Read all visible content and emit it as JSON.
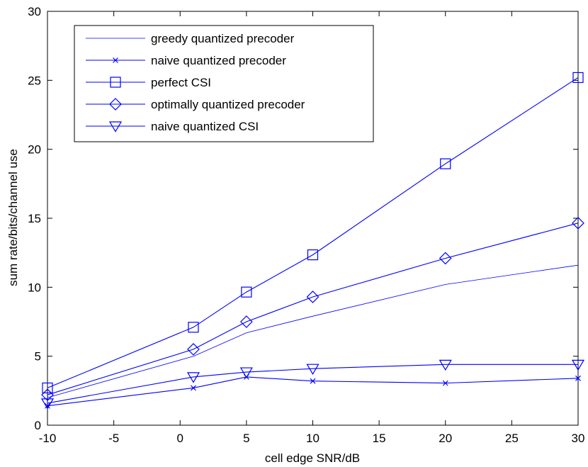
{
  "chart_data": {
    "type": "line",
    "title": "",
    "xlabel": "cell edge SNR/dB",
    "ylabel": "sum rate/bits/channel use",
    "xlim": [
      -10,
      30
    ],
    "ylim": [
      0,
      30
    ],
    "xticks": [
      "-10",
      "-5",
      "0",
      "5",
      "10",
      "15",
      "20",
      "25",
      "30"
    ],
    "yticks": [
      "0",
      "5",
      "10",
      "15",
      "20",
      "25",
      "30"
    ],
    "grid": false,
    "legend_position": "top-left",
    "line_color": "#0000ff",
    "x": [
      -10,
      1,
      5,
      10,
      20,
      30
    ],
    "series": [
      {
        "name": "greedy quantized precoder",
        "marker": "none",
        "values": [
          2.0,
          5.0,
          6.7,
          7.9,
          10.2,
          11.6
        ]
      },
      {
        "name": "naive quantized precoder",
        "marker": "x",
        "values": [
          1.4,
          2.7,
          3.5,
          3.2,
          3.05,
          3.4
        ]
      },
      {
        "name": "perfect CSI",
        "marker": "square",
        "values": [
          2.7,
          7.1,
          9.65,
          12.35,
          18.95,
          25.2
        ]
      },
      {
        "name": "optimally quantized precoder",
        "marker": "diamond",
        "values": [
          2.2,
          5.5,
          7.5,
          9.3,
          12.1,
          14.65
        ]
      },
      {
        "name": "naive quantized CSI",
        "marker": "triangle-down",
        "values": [
          1.6,
          3.5,
          3.85,
          4.1,
          4.4,
          4.4
        ]
      }
    ]
  }
}
